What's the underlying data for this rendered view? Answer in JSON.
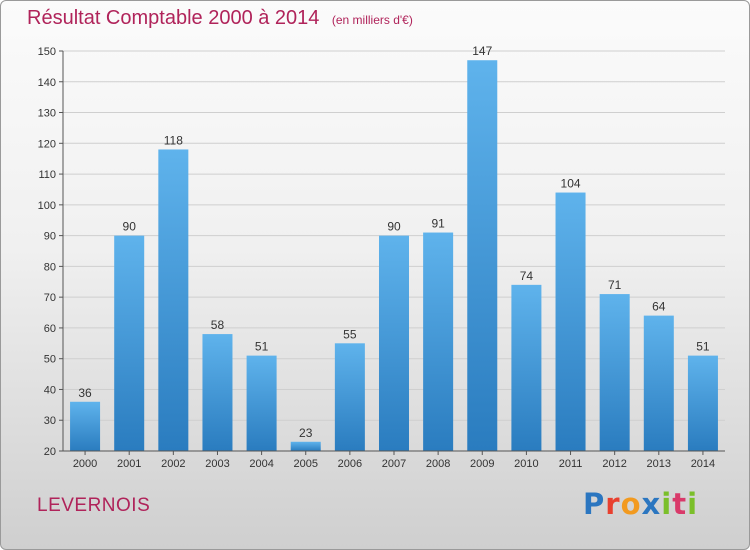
{
  "header": {
    "title": "Résultat Comptable 2000 à 2014",
    "unit": "(en milliers d'€)"
  },
  "footer": {
    "commune": "LEVERNOIS",
    "logo": "Proxiti"
  },
  "colors": {
    "title": "#b0235a",
    "bar_top": "#5fb3ec",
    "bar_bottom": "#2a7cbf",
    "logo": [
      "#2b76c0",
      "#e8402f",
      "#f29a1f",
      "#2b76c0",
      "#7bbf2a",
      "#d93a6a",
      "#7bbf2a"
    ]
  },
  "chart_data": {
    "type": "bar",
    "categories": [
      "2000",
      "2001",
      "2002",
      "2003",
      "2004",
      "2005",
      "2006",
      "2007",
      "2008",
      "2009",
      "2010",
      "2011",
      "2012",
      "2013",
      "2014"
    ],
    "values": [
      36,
      90,
      118,
      58,
      51,
      23,
      55,
      90,
      91,
      147,
      74,
      104,
      71,
      64,
      51
    ],
    "title": "Résultat Comptable 2000 à 2014",
    "xlabel": "",
    "ylabel": "",
    "ylim": [
      20,
      150
    ],
    "yticks": [
      20,
      30,
      40,
      50,
      60,
      70,
      80,
      90,
      100,
      110,
      120,
      130,
      140,
      150
    ],
    "grid": true,
    "legend": "none"
  }
}
